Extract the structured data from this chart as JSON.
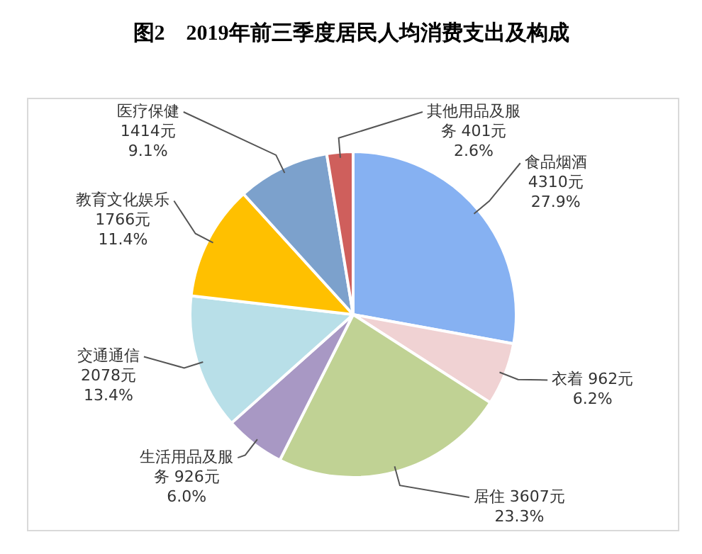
{
  "chart_data": {
    "type": "pie",
    "title": "图2　2019年前三季度居民人均消费支出及构成",
    "categories": [
      "食品烟酒",
      "衣着",
      "居住",
      "生活用品及服务",
      "交通通信",
      "教育文化娱乐",
      "医疗保健",
      "其他用品及服务"
    ],
    "values": [
      4310,
      962,
      3607,
      926,
      2078,
      1766,
      1414,
      401
    ],
    "value_labels": [
      "4310元\n27.9%",
      "962元\n6.2%",
      "3607元\n23.3%",
      "926元\n6.0%",
      "2078元\n13.4%",
      "1766元\n11.4%",
      "1414元\n9.1%",
      "401元\n2.6%"
    ],
    "colors": [
      "#86b1f2",
      "#f0d2d3",
      "#c0d294",
      "#a898c4",
      "#b8dfe8",
      "#ffc000",
      "#7ca1cc",
      "#cf5f5c"
    ],
    "legend": false
  }
}
